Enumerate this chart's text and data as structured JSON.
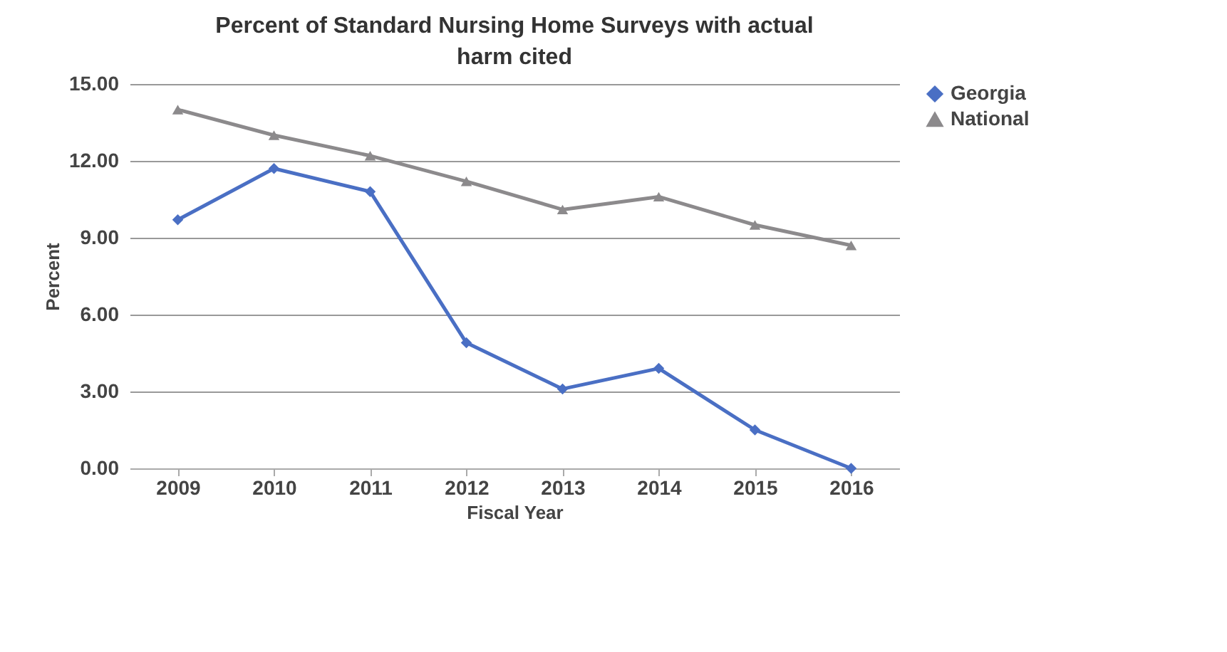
{
  "chart_data": {
    "type": "line",
    "title": "Percent of Standard Nursing Home Surveys with actual harm cited",
    "xlabel": "Fiscal Year",
    "ylabel": "Percent",
    "categories": [
      "2009",
      "2010",
      "2011",
      "2012",
      "2013",
      "2014",
      "2015",
      "2016"
    ],
    "series": [
      {
        "name": "Georgia",
        "color": "#4a6fc4",
        "marker": "diamond",
        "values": [
          9.7,
          11.7,
          10.8,
          4.9,
          3.1,
          3.9,
          1.5,
          0.0
        ]
      },
      {
        "name": "National",
        "color": "#8c8a8c",
        "marker": "triangle",
        "values": [
          14.0,
          13.0,
          12.2,
          11.2,
          10.1,
          10.6,
          9.5,
          8.7
        ]
      }
    ],
    "ylim": [
      0,
      15
    ],
    "yticks": [
      {
        "value": 0,
        "label": "0.00"
      },
      {
        "value": 3,
        "label": "3.00"
      },
      {
        "value": 6,
        "label": "6.00"
      },
      {
        "value": 9,
        "label": "9.00"
      },
      {
        "value": 12,
        "label": "12.00"
      },
      {
        "value": 15,
        "label": "15.00"
      }
    ],
    "grid": "y",
    "legend": "right"
  }
}
